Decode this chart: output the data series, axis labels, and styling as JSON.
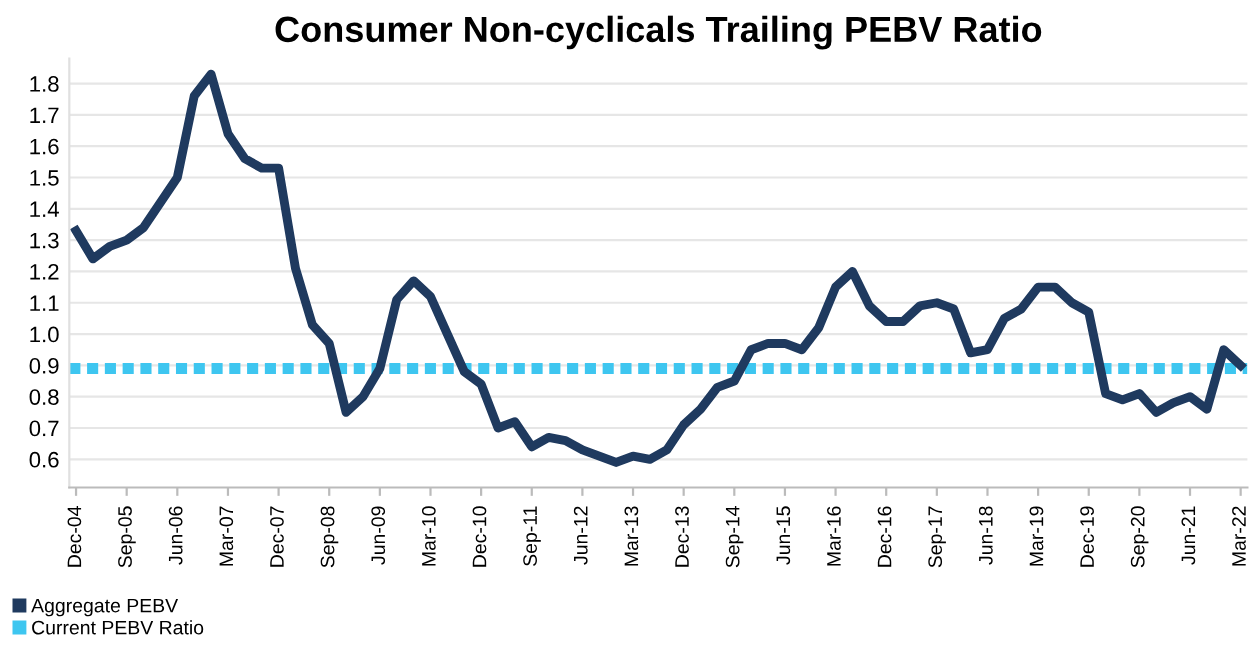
{
  "chart_data": {
    "type": "line",
    "title": "Consumer Non-cyclicals Trailing PEBV Ratio",
    "categories": [
      "Dec-04",
      null,
      null,
      "Sep-05",
      null,
      null,
      "Jun-06",
      null,
      null,
      "Mar-07",
      null,
      null,
      "Dec-07",
      null,
      null,
      "Sep-08",
      null,
      null,
      "Jun-09",
      null,
      null,
      "Mar-10",
      null,
      null,
      "Dec-10",
      null,
      null,
      "Sep-11",
      null,
      null,
      "Jun-12",
      null,
      null,
      "Mar-13",
      null,
      null,
      "Dec-13",
      null,
      null,
      "Sep-14",
      null,
      null,
      "Jun-15",
      null,
      null,
      "Mar-16",
      null,
      null,
      "Dec-16",
      null,
      null,
      "Sep-17",
      null,
      null,
      "Jun-18",
      null,
      null,
      "Mar-19",
      null,
      null,
      "Dec-19",
      null,
      null,
      "Sep-20",
      null,
      null,
      "Jun-21",
      null,
      null,
      "Mar-22"
    ],
    "series": [
      {
        "name": "Aggregate PEBV",
        "color": "#1f3a5f",
        "values": [
          1.33,
          1.24,
          1.28,
          1.3,
          1.34,
          1.42,
          1.5,
          1.76,
          1.83,
          1.64,
          1.56,
          1.53,
          1.53,
          1.21,
          1.03,
          0.97,
          0.75,
          0.8,
          0.89,
          1.11,
          1.17,
          1.12,
          1.0,
          0.88,
          0.84,
          0.7,
          0.72,
          0.64,
          0.67,
          0.66,
          0.63,
          0.61,
          0.59,
          0.61,
          0.6,
          0.63,
          0.71,
          0.76,
          0.83,
          0.85,
          0.95,
          0.97,
          0.97,
          0.95,
          1.02,
          1.15,
          1.2,
          1.09,
          1.04,
          1.04,
          1.09,
          1.1,
          1.08,
          0.94,
          0.95,
          1.05,
          1.08,
          1.15,
          1.15,
          1.1,
          1.07,
          0.81,
          0.79,
          0.81,
          0.75,
          0.78,
          0.8,
          0.76,
          0.95,
          0.9
        ]
      }
    ],
    "ref_lines": [
      {
        "axis": "y",
        "value": 0.89,
        "label": "Current PEBV Ratio",
        "color": "#3ec6f0",
        "line_style": "dotted"
      }
    ],
    "ylim": [
      0.51,
      1.88
    ],
    "yticks": [
      0.6,
      0.7,
      0.8,
      0.9,
      {
        "value": 1.0,
        "label": "1.0"
      },
      1.1,
      1.2,
      1.3,
      1.4,
      1.5,
      1.6,
      1.7,
      1.8
    ],
    "grid": "y",
    "legend": "bottom left",
    "marker": "none",
    "line_style": "solid"
  }
}
